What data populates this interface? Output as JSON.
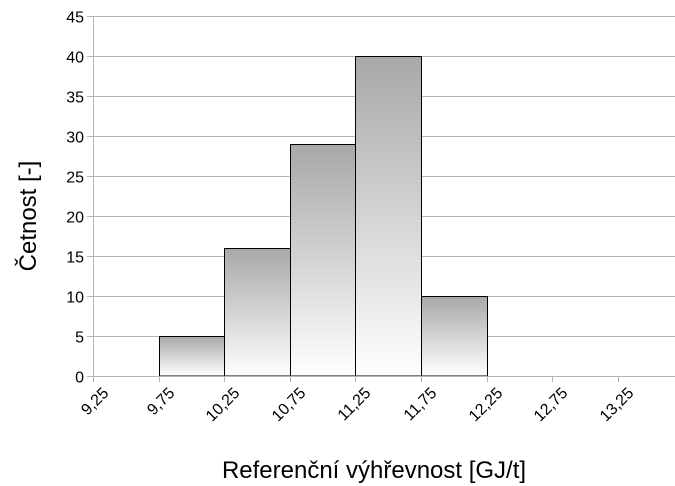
{
  "chart_data": {
    "type": "bar",
    "categories": [
      "9,25",
      "9,75",
      "10,25",
      "10,75",
      "11,25",
      "11,75",
      "12,25",
      "12,75",
      "13,25"
    ],
    "values": [
      0,
      5,
      16,
      29,
      40,
      10,
      0,
      0,
      0
    ],
    "xlabel": "Referenční výhřevnost [GJ/t]",
    "ylabel": "Četnost [-]",
    "ylim": [
      0,
      45
    ],
    "yticks": [
      "0",
      "5",
      "10",
      "15",
      "20",
      "25",
      "30",
      "35",
      "40",
      "45"
    ],
    "grid": true,
    "legend": "none",
    "colors": {
      "bar_top": "#a8a8a8",
      "bar_bottom": "#ffffff",
      "bar_stroke": "#000000",
      "grid": "#b3b3b3"
    }
  }
}
